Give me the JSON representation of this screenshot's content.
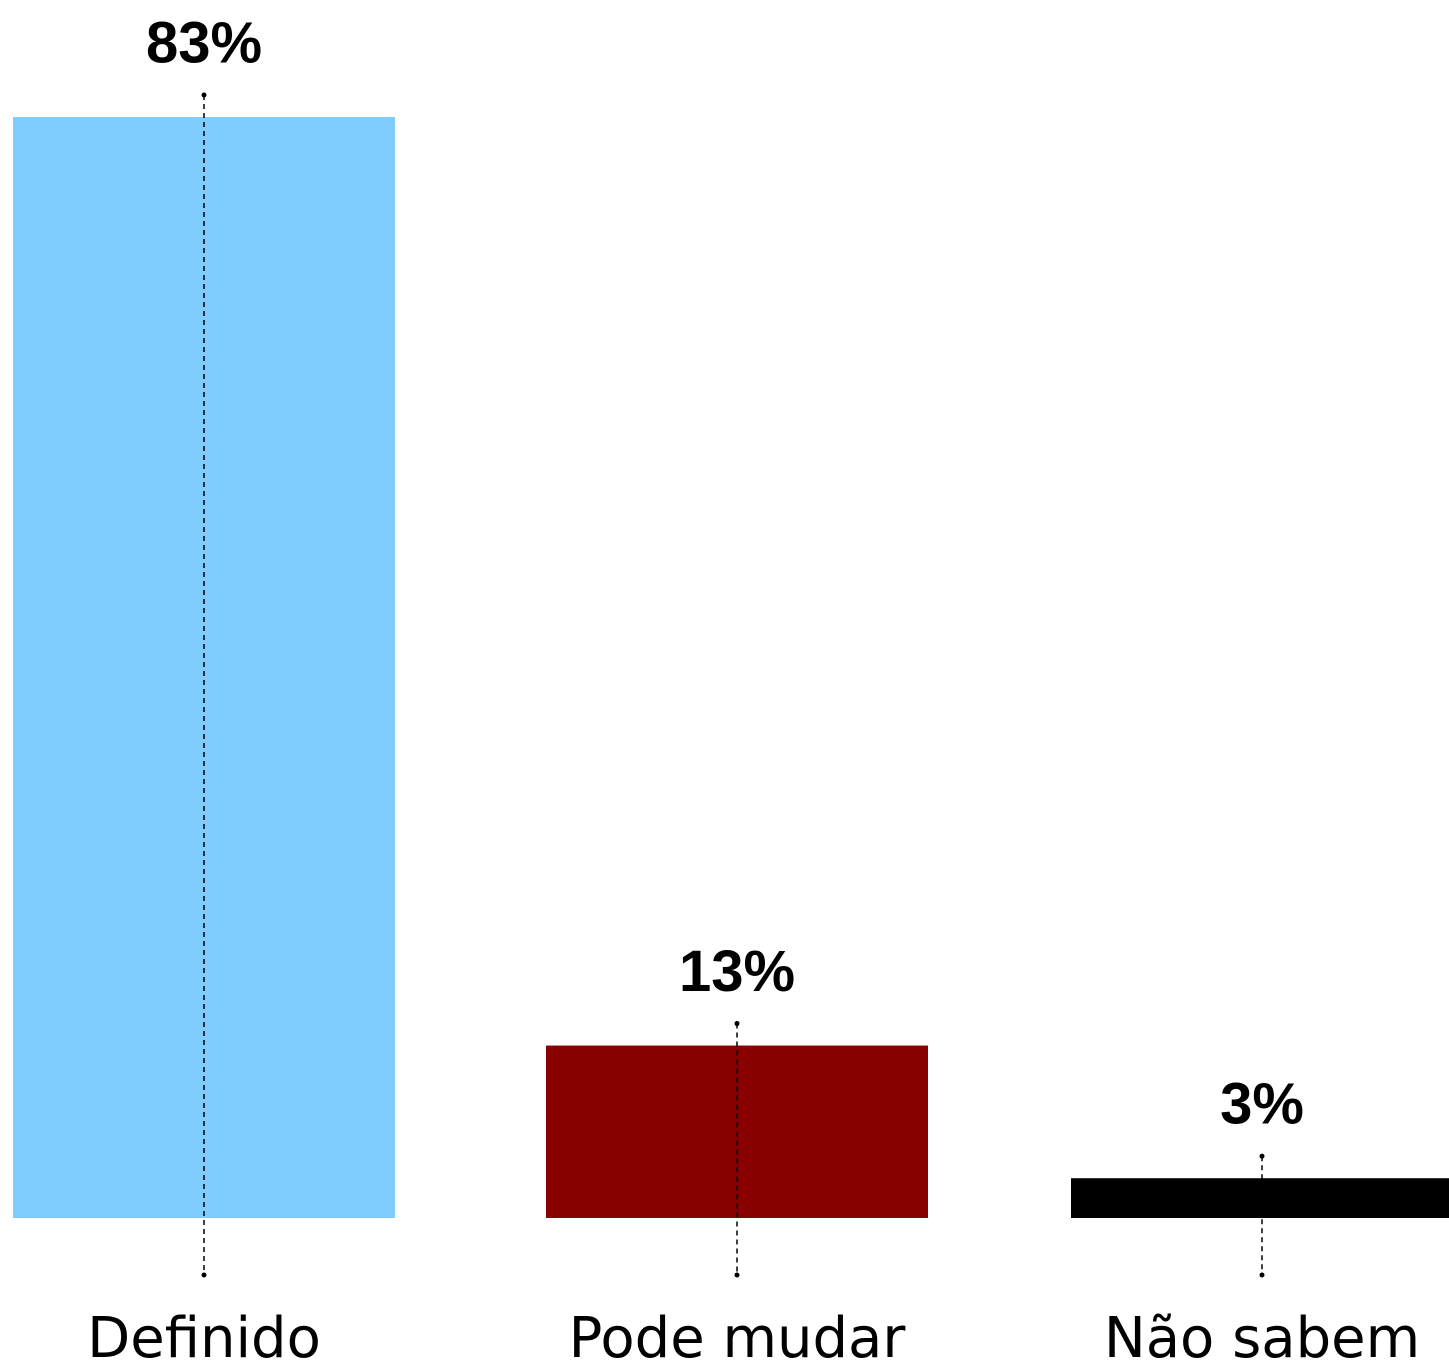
{
  "chart_data": {
    "type": "bar",
    "categories": [
      "Definido",
      "Pode mudar",
      "Não sabem"
    ],
    "values": [
      83,
      13,
      3
    ],
    "value_labels": [
      "83%",
      "13%",
      "3%"
    ],
    "colors": [
      "#80ccff",
      "#880000",
      "#000000"
    ]
  }
}
